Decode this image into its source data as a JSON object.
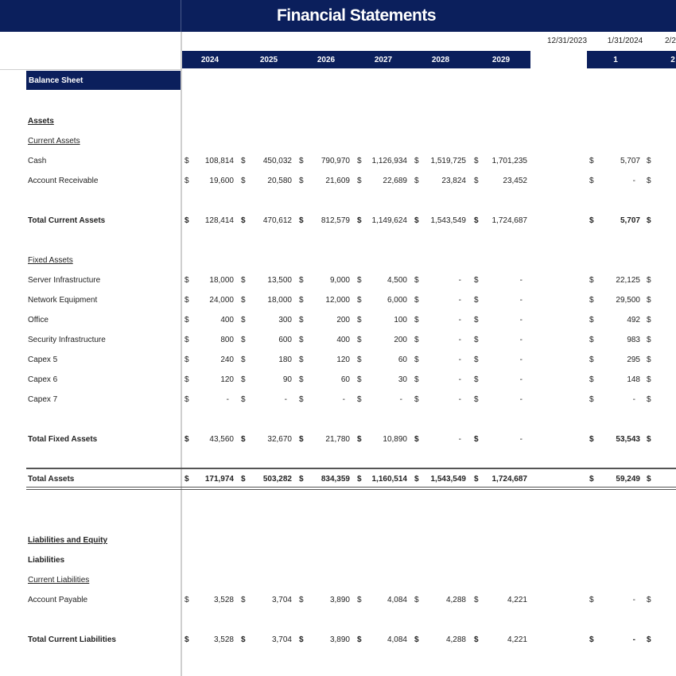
{
  "header": {
    "title": "Financial Statements",
    "years": [
      "2024",
      "2025",
      "2026",
      "2027",
      "2028",
      "2029"
    ],
    "dates": [
      "12/31/2023",
      "1/31/2024",
      "2/2"
    ],
    "months": [
      "1",
      "2"
    ]
  },
  "section": {
    "label": "Balance Sheet"
  },
  "labels": {
    "assets": "Assets",
    "current_assets": "Current Assets",
    "fixed_assets": "Fixed Assets",
    "liabilities_equity": "Liabilities and Equity",
    "liabilities": "Liabilities",
    "current_liabilities": "Current Liabilities"
  },
  "currency_symbol": "$",
  "rows": [
    {
      "label": "Cash",
      "values": [
        "108,814",
        "450,032",
        "790,970",
        "1,126,934",
        "1,519,725",
        "1,701,235"
      ],
      "monthly": [
        "5,707"
      ],
      "bold": false
    },
    {
      "label": "Account Receivable",
      "values": [
        "19,600",
        "20,580",
        "21,609",
        "22,689",
        "23,824",
        "23,452"
      ],
      "monthly": [
        "-"
      ],
      "bold": false
    },
    {
      "label": "Total Current Assets",
      "values": [
        "128,414",
        "470,612",
        "812,579",
        "1,149,624",
        "1,543,549",
        "1,724,687"
      ],
      "monthly": [
        "5,707"
      ],
      "bold": true
    },
    {
      "label": "Server Infrastructure",
      "values": [
        "18,000",
        "13,500",
        "9,000",
        "4,500",
        "-",
        "-"
      ],
      "monthly": [
        "22,125"
      ],
      "bold": false
    },
    {
      "label": "Network Equipment",
      "values": [
        "24,000",
        "18,000",
        "12,000",
        "6,000",
        "-",
        "-"
      ],
      "monthly": [
        "29,500"
      ],
      "bold": false
    },
    {
      "label": "Office",
      "values": [
        "400",
        "300",
        "200",
        "100",
        "-",
        "-"
      ],
      "monthly": [
        "492"
      ],
      "bold": false
    },
    {
      "label": "Security Infrastructure",
      "values": [
        "800",
        "600",
        "400",
        "200",
        "-",
        "-"
      ],
      "monthly": [
        "983"
      ],
      "bold": false
    },
    {
      "label": "Capex 5",
      "values": [
        "240",
        "180",
        "120",
        "60",
        "-",
        "-"
      ],
      "monthly": [
        "295"
      ],
      "bold": false
    },
    {
      "label": "Capex 6",
      "values": [
        "120",
        "90",
        "60",
        "30",
        "-",
        "-"
      ],
      "monthly": [
        "148"
      ],
      "bold": false
    },
    {
      "label": "Capex 7",
      "values": [
        "-",
        "-",
        "-",
        "-",
        "-",
        "-"
      ],
      "monthly": [
        "-"
      ],
      "bold": false
    },
    {
      "label": "Total Fixed Assets",
      "values": [
        "43,560",
        "32,670",
        "21,780",
        "10,890",
        "-",
        "-"
      ],
      "monthly": [
        "53,543"
      ],
      "bold": true
    },
    {
      "label": "Total Assets",
      "values": [
        "171,974",
        "503,282",
        "834,359",
        "1,160,514",
        "1,543,549",
        "1,724,687"
      ],
      "monthly": [
        "59,249"
      ],
      "bold": true
    },
    {
      "label": "Account Payable",
      "values": [
        "3,528",
        "3,704",
        "3,890",
        "4,084",
        "4,288",
        "4,221"
      ],
      "monthly": [
        "-"
      ],
      "bold": false
    },
    {
      "label": "Total Current Liabilities",
      "values": [
        "3,528",
        "3,704",
        "3,890",
        "4,084",
        "4,288",
        "4,221"
      ],
      "monthly": [
        "-"
      ],
      "bold": true
    }
  ]
}
